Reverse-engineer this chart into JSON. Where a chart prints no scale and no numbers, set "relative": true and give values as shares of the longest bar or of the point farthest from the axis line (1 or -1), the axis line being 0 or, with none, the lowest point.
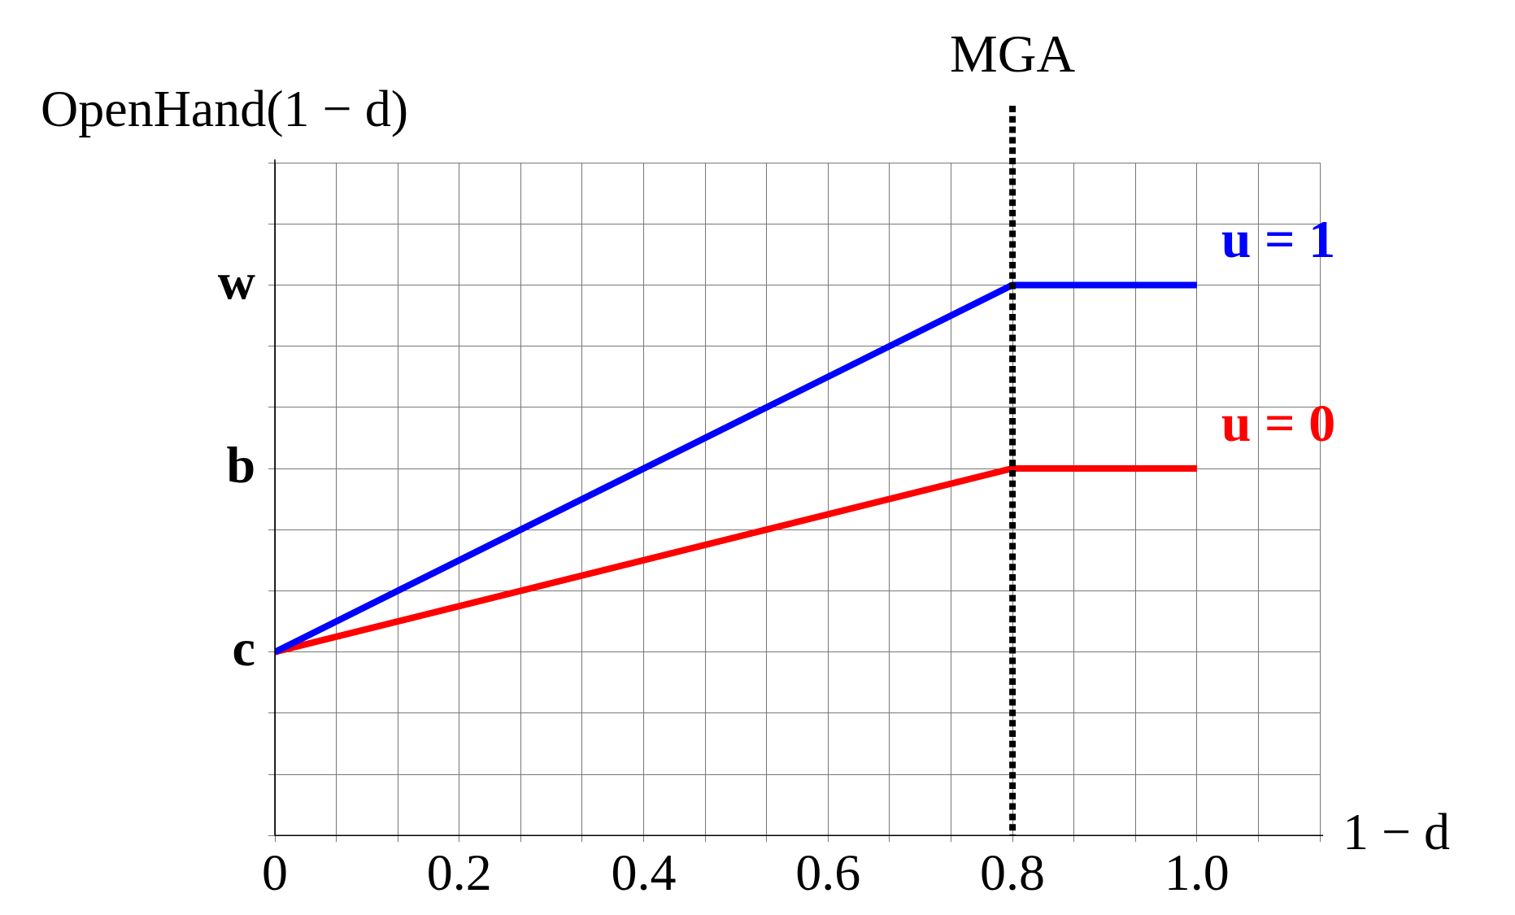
{
  "chart_data": {
    "type": "line",
    "ylabel": "OpenHand(1 − d)",
    "xlabel": "1 − d",
    "relative": true,
    "xlim": [
      0,
      1.1333
    ],
    "xticks": [
      0,
      {
        "value": 0.0667,
        "label": null
      },
      {
        "value": 0.1333,
        "label": null
      },
      0.2,
      {
        "value": 0.2667,
        "label": null
      },
      {
        "value": 0.3333,
        "label": null
      },
      0.4,
      {
        "value": 0.4667,
        "label": null
      },
      {
        "value": 0.5333,
        "label": null
      },
      0.6,
      {
        "value": 0.6667,
        "label": null
      },
      {
        "value": 0.7333,
        "label": null
      },
      0.8,
      {
        "value": 0.8667,
        "label": null
      },
      {
        "value": 0.9333,
        "label": null
      },
      {
        "value": 1.0,
        "label": "1.0"
      },
      {
        "value": 1.0667,
        "label": null
      },
      {
        "value": 1.1333,
        "label": null
      }
    ],
    "grid": true,
    "legend": false,
    "marker": "none",
    "line_style": "solid",
    "series": [
      {
        "name": "u = 1",
        "color": "#0000ff",
        "x": [
          0,
          0.8,
          1.0
        ],
        "values": [
          0.3333,
          1,
          1
        ]
      },
      {
        "name": "u = 0",
        "color": "#ff0000",
        "x": [
          0,
          0.8,
          1.0
        ],
        "values": [
          0.3333,
          0.6667,
          0.6667
        ]
      }
    ],
    "annotations": [
      "c",
      "b",
      "w"
    ],
    "ref_lines": [
      {
        "axis": "x",
        "value": 0.8,
        "label": "MGA",
        "color": "#000000",
        "line_style": "dotted"
      }
    ]
  }
}
